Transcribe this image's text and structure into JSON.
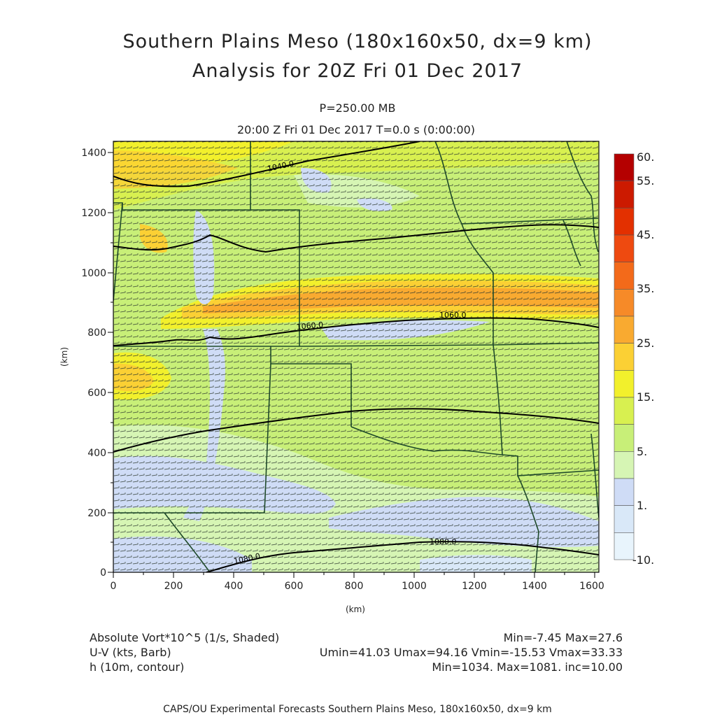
{
  "titles": {
    "line1": "Southern Plains Meso (180x160x50, dx=9 km)",
    "line2": "Analysis for 20Z Fri 01 Dec 2017",
    "pressure": "P=250.00 MB",
    "time": "20:00 Z Fri 01 Dec 2017    T=0.0 s (0:00:00)"
  },
  "axes": {
    "x_label": "(km)",
    "y_label": "(km)",
    "x_ticks": [
      "0",
      "200",
      "400",
      "600",
      "800",
      "1000",
      "1200",
      "1400",
      "1600"
    ],
    "y_ticks": [
      "0",
      "200",
      "400",
      "600",
      "800",
      "1000",
      "1200",
      "1400"
    ]
  },
  "colorbar": {
    "labels": [
      "60.",
      "55.",
      "45.",
      "35.",
      "25.",
      "15.",
      "5.",
      "1.",
      "-10."
    ],
    "colors": [
      "#b40000",
      "#cc1a00",
      "#e33000",
      "#ee4a10",
      "#f36a1a",
      "#f68a28",
      "#f9aa30",
      "#fbd034",
      "#f2f02c",
      "#d8f050",
      "#c8ef78",
      "#d6f5b4",
      "#cfdcf6",
      "#d9e8f8",
      "#e8f4fc"
    ]
  },
  "contours": {
    "labels": [
      "1040.0",
      "1060.0",
      "1060.0",
      "1080.0",
      "1080.0"
    ]
  },
  "info": {
    "field1": "Absolute Vort*10^5 (1/s, Shaded)",
    "field1_stats": "Min=-7.45 Max=27.6",
    "field2": "U-V (kts, Barb)",
    "field2_stats": "Umin=41.03 Umax=94.16 Vmin=-15.53 Vmax=33.33",
    "field3": "h (10m, contour)",
    "field3_stats": "Min=1034. Max=1081. inc=10.00"
  },
  "footer": "CAPS/OU Experimental Forecasts  Southern Plains Meso, 180x160x50, dx=9 km"
}
